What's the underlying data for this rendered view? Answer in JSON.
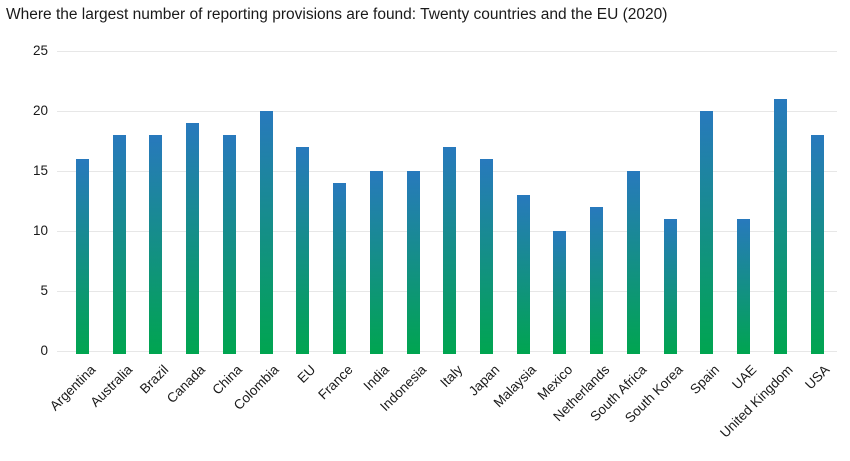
{
  "title": "Where the largest number of reporting provisions are found: Twenty countries and the EU (2020)",
  "chart_data": {
    "type": "bar",
    "title": "Where the largest number of reporting provisions are found: Twenty countries and the EU (2020)",
    "categories": [
      "Argentina",
      "Australia",
      "Brazil",
      "Canada",
      "China",
      "Colombia",
      "EU",
      "France",
      "India",
      "Indonesia",
      "Italy",
      "Japan",
      "Malaysia",
      "Mexico",
      "Netherlands",
      "South Africa",
      "South Korea",
      "Spain",
      "UAE",
      "United Kingdom",
      "USA"
    ],
    "values": [
      16,
      18,
      18,
      19,
      18,
      20,
      17,
      14,
      15,
      15,
      17,
      16,
      13,
      10,
      12,
      15,
      11,
      20,
      11,
      21,
      18
    ],
    "xlabel": "",
    "ylabel": "",
    "ylim": [
      0,
      25
    ],
    "yticks": [
      0,
      5,
      10,
      15,
      20,
      25
    ],
    "grid": "horizontal only",
    "legend": "none",
    "x_tick_rotation_deg": -45
  },
  "colors": {
    "bar_gradient_top": "#2879bd",
    "bar_gradient_bottom": "#00a550",
    "gridline": "#e7e7e7",
    "text": "#1a1a1a",
    "background": "#ffffff"
  }
}
